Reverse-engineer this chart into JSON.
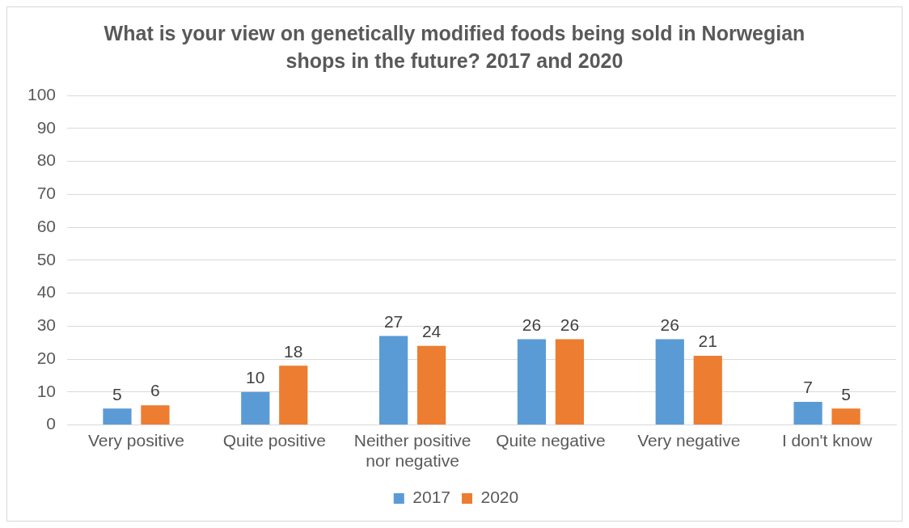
{
  "chart_data": {
    "type": "bar",
    "title": "What is your view on genetically modified foods being sold in Norwegian shops in the future? 2017 and 2020",
    "categories": [
      "Very positive",
      "Quite positive",
      "Neither positive nor negative",
      "Quite negative",
      "Very negative",
      "I don't know"
    ],
    "series": [
      {
        "name": "2017",
        "color": "#5b9bd5",
        "values": [
          5,
          10,
          27,
          26,
          26,
          7
        ]
      },
      {
        "name": "2020",
        "color": "#ed7d31",
        "values": [
          6,
          18,
          24,
          26,
          21,
          5
        ]
      }
    ],
    "ylim": [
      0,
      100
    ],
    "yticks": [
      0,
      10,
      20,
      30,
      40,
      50,
      60,
      70,
      80,
      90,
      100
    ],
    "grid": "y",
    "legend": "bottom",
    "data_labels": true
  }
}
